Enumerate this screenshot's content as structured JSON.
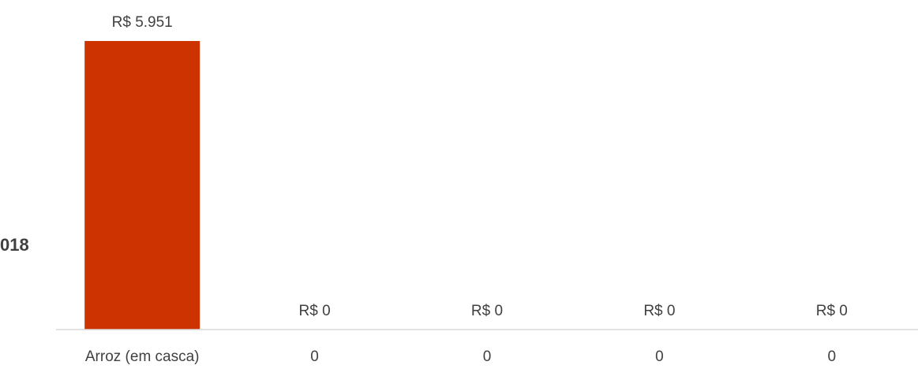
{
  "chart_data": {
    "type": "bar",
    "side_label": "018",
    "categories": [
      "Arroz (em casca)",
      "0",
      "0",
      "0",
      "0"
    ],
    "values": [
      5951,
      0,
      0,
      0,
      0
    ],
    "data_labels": [
      "R$ 5.951",
      "R$ 0",
      "R$ 0",
      "R$ 0",
      "R$ 0"
    ],
    "ylim": [
      0,
      5951
    ],
    "grid": false,
    "colors": {
      "bar": "#cc3300",
      "axis": "#d9d9d9",
      "text": "#404040"
    }
  }
}
